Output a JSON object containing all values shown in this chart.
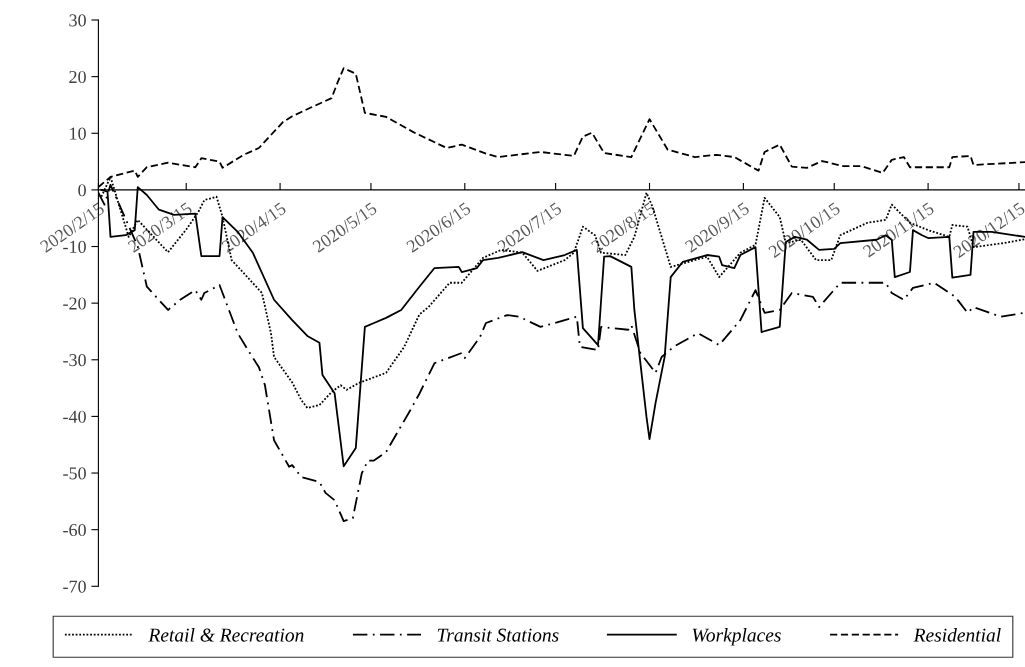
{
  "chart_data": {
    "type": "line",
    "ylim": [
      -70,
      30
    ],
    "yticks": [
      -70,
      -60,
      -50,
      -40,
      -30,
      -20,
      -10,
      0,
      10,
      20,
      30
    ],
    "xlim": [
      "2020-02-15",
      "2020-12-17"
    ],
    "xticks": [
      {
        "value": "2020-02-15",
        "label": "2020/2/15"
      },
      {
        "value": "2020-03-15",
        "label": "2020/3/15"
      },
      {
        "value": "2020-04-15",
        "label": "2020/4/15"
      },
      {
        "value": "2020-05-15",
        "label": "2020/5/15"
      },
      {
        "value": "2020-06-15",
        "label": "2020/6/15"
      },
      {
        "value": "2020-07-15",
        "label": "2020/7/15"
      },
      {
        "value": "2020-08-15",
        "label": "2020/8/15"
      },
      {
        "value": "2020-09-15",
        "label": "2020/9/15"
      },
      {
        "value": "2020-10-15",
        "label": "2020/10/15"
      },
      {
        "value": "2020-11-15",
        "label": "2020/11/15"
      },
      {
        "value": "2020-12-15",
        "label": "2020/12/15"
      }
    ],
    "grid": false,
    "legend": "bottom",
    "marker": "none",
    "series": [
      {
        "name": "Retail & Recreation",
        "color": "#000000",
        "line_style": "dotted",
        "x": [
          "2020-02-16",
          "2020-02-19",
          "2020-02-25",
          "2020-02-28",
          "2020-03-09",
          "2020-03-15",
          "2020-03-19",
          "2020-03-21",
          "2020-03-25",
          "2020-03-27",
          "2020-03-30",
          "2020-04-03",
          "2020-04-09",
          "2020-04-12",
          "2020-04-13",
          "2020-04-19",
          "2020-04-22",
          "2020-04-24",
          "2020-04-28",
          "2020-05-02",
          "2020-05-05",
          "2020-05-07",
          "2020-05-11",
          "2020-05-20",
          "2020-05-26",
          "2020-05-31",
          "2020-06-03",
          "2020-06-10",
          "2020-06-14",
          "2020-06-21",
          "2020-06-27",
          "2020-07-04",
          "2020-07-09",
          "2020-07-18",
          "2020-07-21",
          "2020-07-24",
          "2020-07-28",
          "2020-07-30",
          "2020-08-07",
          "2020-08-10",
          "2020-08-14",
          "2020-08-16",
          "2020-08-22",
          "2020-08-28",
          "2020-09-03",
          "2020-09-07",
          "2020-09-14",
          "2020-09-19",
          "2020-09-22",
          "2020-09-27",
          "2020-09-29",
          "2020-10-04",
          "2020-10-09",
          "2020-10-14",
          "2020-10-17",
          "2020-10-26",
          "2020-11-01",
          "2020-11-03",
          "2020-11-09",
          "2020-11-15",
          "2020-11-22",
          "2020-11-23",
          "2020-11-28",
          "2020-11-30",
          "2020-12-10",
          "2020-12-17"
        ],
        "values": [
          -1.2,
          2.3,
          -8.3,
          -5.3,
          -11,
          -7,
          -3.9,
          -1.8,
          -1.2,
          -4.8,
          -12.4,
          -14.7,
          -18.2,
          -25.3,
          -29.5,
          -34,
          -37.1,
          -38.5,
          -38,
          -35.7,
          -34.5,
          -35.3,
          -34.1,
          -32.3,
          -27.7,
          -22,
          -20.7,
          -16.4,
          -16.4,
          -12,
          -10.6,
          -11.1,
          -14.3,
          -12.4,
          -11.1,
          -6.5,
          -8,
          -11.1,
          -11.5,
          -8.3,
          -0.5,
          -3,
          -13.6,
          -12.7,
          -11.8,
          -15.4,
          -11.1,
          -9.7,
          -1.4,
          -4.8,
          -9.4,
          -8.8,
          -12.4,
          -12.4,
          -8,
          -5.8,
          -5.3,
          -2.6,
          -5.8,
          -7.1,
          -8.3,
          -6.2,
          -6.5,
          -10.1,
          -9.4,
          -8.7
        ]
      },
      {
        "name": "Transit Stations",
        "color": "#000000",
        "line_style": "dashdot",
        "x": [
          "2020-02-15",
          "2020-02-17",
          "2020-02-19",
          "2020-02-28",
          "2020-03-02",
          "2020-03-09",
          "2020-03-13",
          "2020-03-18",
          "2020-03-20",
          "2020-03-21",
          "2020-03-26",
          "2020-03-27",
          "2020-04-01",
          "2020-04-05",
          "2020-04-08",
          "2020-04-10",
          "2020-04-13",
          "2020-04-18",
          "2020-04-19",
          "2020-04-22",
          "2020-04-28",
          "2020-04-30",
          "2020-05-03",
          "2020-05-06",
          "2020-05-09",
          "2020-05-12",
          "2020-05-14",
          "2020-05-16",
          "2020-05-20",
          "2020-05-28",
          "2020-05-31",
          "2020-06-05",
          "2020-06-14",
          "2020-06-15",
          "2020-06-20",
          "2020-06-22",
          "2020-06-29",
          "2020-07-03",
          "2020-07-10",
          "2020-07-18",
          "2020-07-22",
          "2020-07-23",
          "2020-07-29",
          "2020-07-30",
          "2020-08-08",
          "2020-08-09",
          "2020-08-12",
          "2020-08-17",
          "2020-08-19",
          "2020-08-23",
          "2020-08-31",
          "2020-09-07",
          "2020-09-14",
          "2020-09-19",
          "2020-09-22",
          "2020-09-27",
          "2020-10-01",
          "2020-10-08",
          "2020-10-10",
          "2020-10-17",
          "2020-11-01",
          "2020-11-03",
          "2020-11-07",
          "2020-11-10",
          "2020-11-17",
          "2020-11-24",
          "2020-11-28",
          "2020-11-30",
          "2020-12-09",
          "2020-12-17"
        ],
        "values": [
          -0.5,
          -2.6,
          0.9,
          -10,
          -17.1,
          -21.2,
          -19.4,
          -17.7,
          -19.4,
          -18.2,
          -16.8,
          -18.2,
          -25.3,
          -28.8,
          -31.3,
          -34.5,
          -44.2,
          -48.9,
          -48.6,
          -50.7,
          -51.6,
          -53.5,
          -54.8,
          -58.5,
          -58,
          -50,
          -47.8,
          -47.8,
          -46.3,
          -38.9,
          -36,
          -30.6,
          -28.8,
          -29.7,
          -26,
          -23.5,
          -22.1,
          -22.4,
          -24.2,
          -23,
          -22.4,
          -27.7,
          -28.3,
          -24.2,
          -24.7,
          -23.9,
          -28.8,
          -32.3,
          -29.5,
          -27.7,
          -25.3,
          -27.4,
          -23,
          -17.7,
          -21.7,
          -21.2,
          -18.2,
          -18.9,
          -20.7,
          -16.4,
          -16.4,
          -18.2,
          -19.4,
          -17.3,
          -16.4,
          -18.9,
          -21.7,
          -20.7,
          -22.4,
          -21.7
        ]
      },
      {
        "name": "Workplaces",
        "color": "#000000",
        "line_style": "solid",
        "x": [
          "2020-02-16",
          "2020-02-18",
          "2020-02-19",
          "2020-02-24",
          "2020-02-27",
          "2020-02-28",
          "2020-03-02",
          "2020-03-06",
          "2020-03-11",
          "2020-03-18",
          "2020-03-20",
          "2020-03-26",
          "2020-03-27",
          "2020-04-01",
          "2020-04-06",
          "2020-04-13",
          "2020-04-19",
          "2020-04-24",
          "2020-04-28",
          "2020-04-29",
          "2020-05-03",
          "2020-05-06",
          "2020-05-10",
          "2020-05-13",
          "2020-05-16",
          "2020-05-20",
          "2020-05-25",
          "2020-05-31",
          "2020-06-05",
          "2020-06-13",
          "2020-06-14",
          "2020-06-19",
          "2020-06-21",
          "2020-06-26",
          "2020-07-04",
          "2020-07-11",
          "2020-07-18",
          "2020-07-22",
          "2020-07-24",
          "2020-07-29",
          "2020-07-31",
          "2020-08-02",
          "2020-08-09",
          "2020-08-10",
          "2020-08-14",
          "2020-08-15",
          "2020-08-17",
          "2020-08-20",
          "2020-08-22",
          "2020-08-26",
          "2020-09-03",
          "2020-09-07",
          "2020-09-08",
          "2020-09-12",
          "2020-09-14",
          "2020-09-19",
          "2020-09-21",
          "2020-09-27",
          "2020-09-29",
          "2020-10-02",
          "2020-10-06",
          "2020-10-10",
          "2020-10-15",
          "2020-10-17",
          "2020-10-29",
          "2020-11-01",
          "2020-11-03",
          "2020-11-04",
          "2020-11-09",
          "2020-11-10",
          "2020-11-13",
          "2020-11-15",
          "2020-11-22",
          "2020-11-23",
          "2020-11-29",
          "2020-11-30",
          "2020-12-06",
          "2020-12-17"
        ],
        "values": [
          0,
          -0.3,
          -8.3,
          -8,
          -7.1,
          0.5,
          -0.9,
          -3.5,
          -4.4,
          -4.2,
          -11.7,
          -11.7,
          -4.8,
          -7.4,
          -11.1,
          -19.4,
          -23,
          -25.8,
          -27,
          -32.7,
          -35.9,
          -48.8,
          -45.6,
          -24.2,
          -23.5,
          -22.6,
          -21.2,
          -17.1,
          -13.8,
          -13.6,
          -14.5,
          -13.8,
          -12.4,
          -12,
          -11,
          -12.4,
          -11.5,
          -10.6,
          -24.4,
          -27.4,
          -11.8,
          -11.7,
          -13.6,
          -21.2,
          -40.1,
          -44,
          -37.6,
          -29.5,
          -15.4,
          -12.7,
          -11.5,
          -11.8,
          -13.3,
          -13.8,
          -11.5,
          -10.1,
          -25.1,
          -24.2,
          -9.2,
          -8.3,
          -8.8,
          -10.6,
          -10.4,
          -9.4,
          -8.8,
          -8,
          -8.8,
          -15.4,
          -14.5,
          -7.1,
          -8,
          -8.5,
          -8.3,
          -15.5,
          -15,
          -7.4,
          -7.4,
          -8.3
        ]
      },
      {
        "name": "Residential",
        "color": "#000000",
        "line_style": "dashed",
        "x": [
          "2020-02-15",
          "2020-02-19",
          "2020-02-27",
          "2020-02-28",
          "2020-03-02",
          "2020-03-09",
          "2020-03-18",
          "2020-03-20",
          "2020-03-26",
          "2020-03-27",
          "2020-04-03",
          "2020-04-08",
          "2020-04-16",
          "2020-04-19",
          "2020-04-25",
          "2020-05-02",
          "2020-05-04",
          "2020-05-06",
          "2020-05-10",
          "2020-05-13",
          "2020-05-20",
          "2020-05-29",
          "2020-06-09",
          "2020-06-14",
          "2020-06-22",
          "2020-06-26",
          "2020-07-10",
          "2020-07-21",
          "2020-07-24",
          "2020-07-27",
          "2020-07-31",
          "2020-08-09",
          "2020-08-15",
          "2020-08-21",
          "2020-08-30",
          "2020-09-06",
          "2020-09-12",
          "2020-09-20",
          "2020-09-22",
          "2020-09-27",
          "2020-10-01",
          "2020-10-06",
          "2020-10-11",
          "2020-10-18",
          "2020-10-24",
          "2020-10-31",
          "2020-11-03",
          "2020-11-07",
          "2020-11-09",
          "2020-11-22",
          "2020-11-23",
          "2020-11-29",
          "2020-11-30",
          "2020-12-17"
        ],
        "values": [
          0.5,
          2.3,
          3.4,
          2.3,
          4,
          4.8,
          4,
          5.6,
          5,
          3.9,
          6.2,
          7.4,
          12,
          13,
          14.5,
          16.2,
          19,
          21.5,
          20.5,
          13.6,
          12.9,
          10.2,
          7.4,
          8,
          6.4,
          5.8,
          6.7,
          6,
          9.4,
          10.1,
          6.5,
          5.8,
          12.5,
          7.1,
          5.8,
          6.2,
          5.8,
          3.4,
          6.7,
          8,
          4.1,
          3.9,
          5.1,
          4.2,
          4.2,
          3,
          5.3,
          5.8,
          4,
          4,
          5.8,
          6,
          4.4,
          4.9
        ]
      }
    ]
  }
}
